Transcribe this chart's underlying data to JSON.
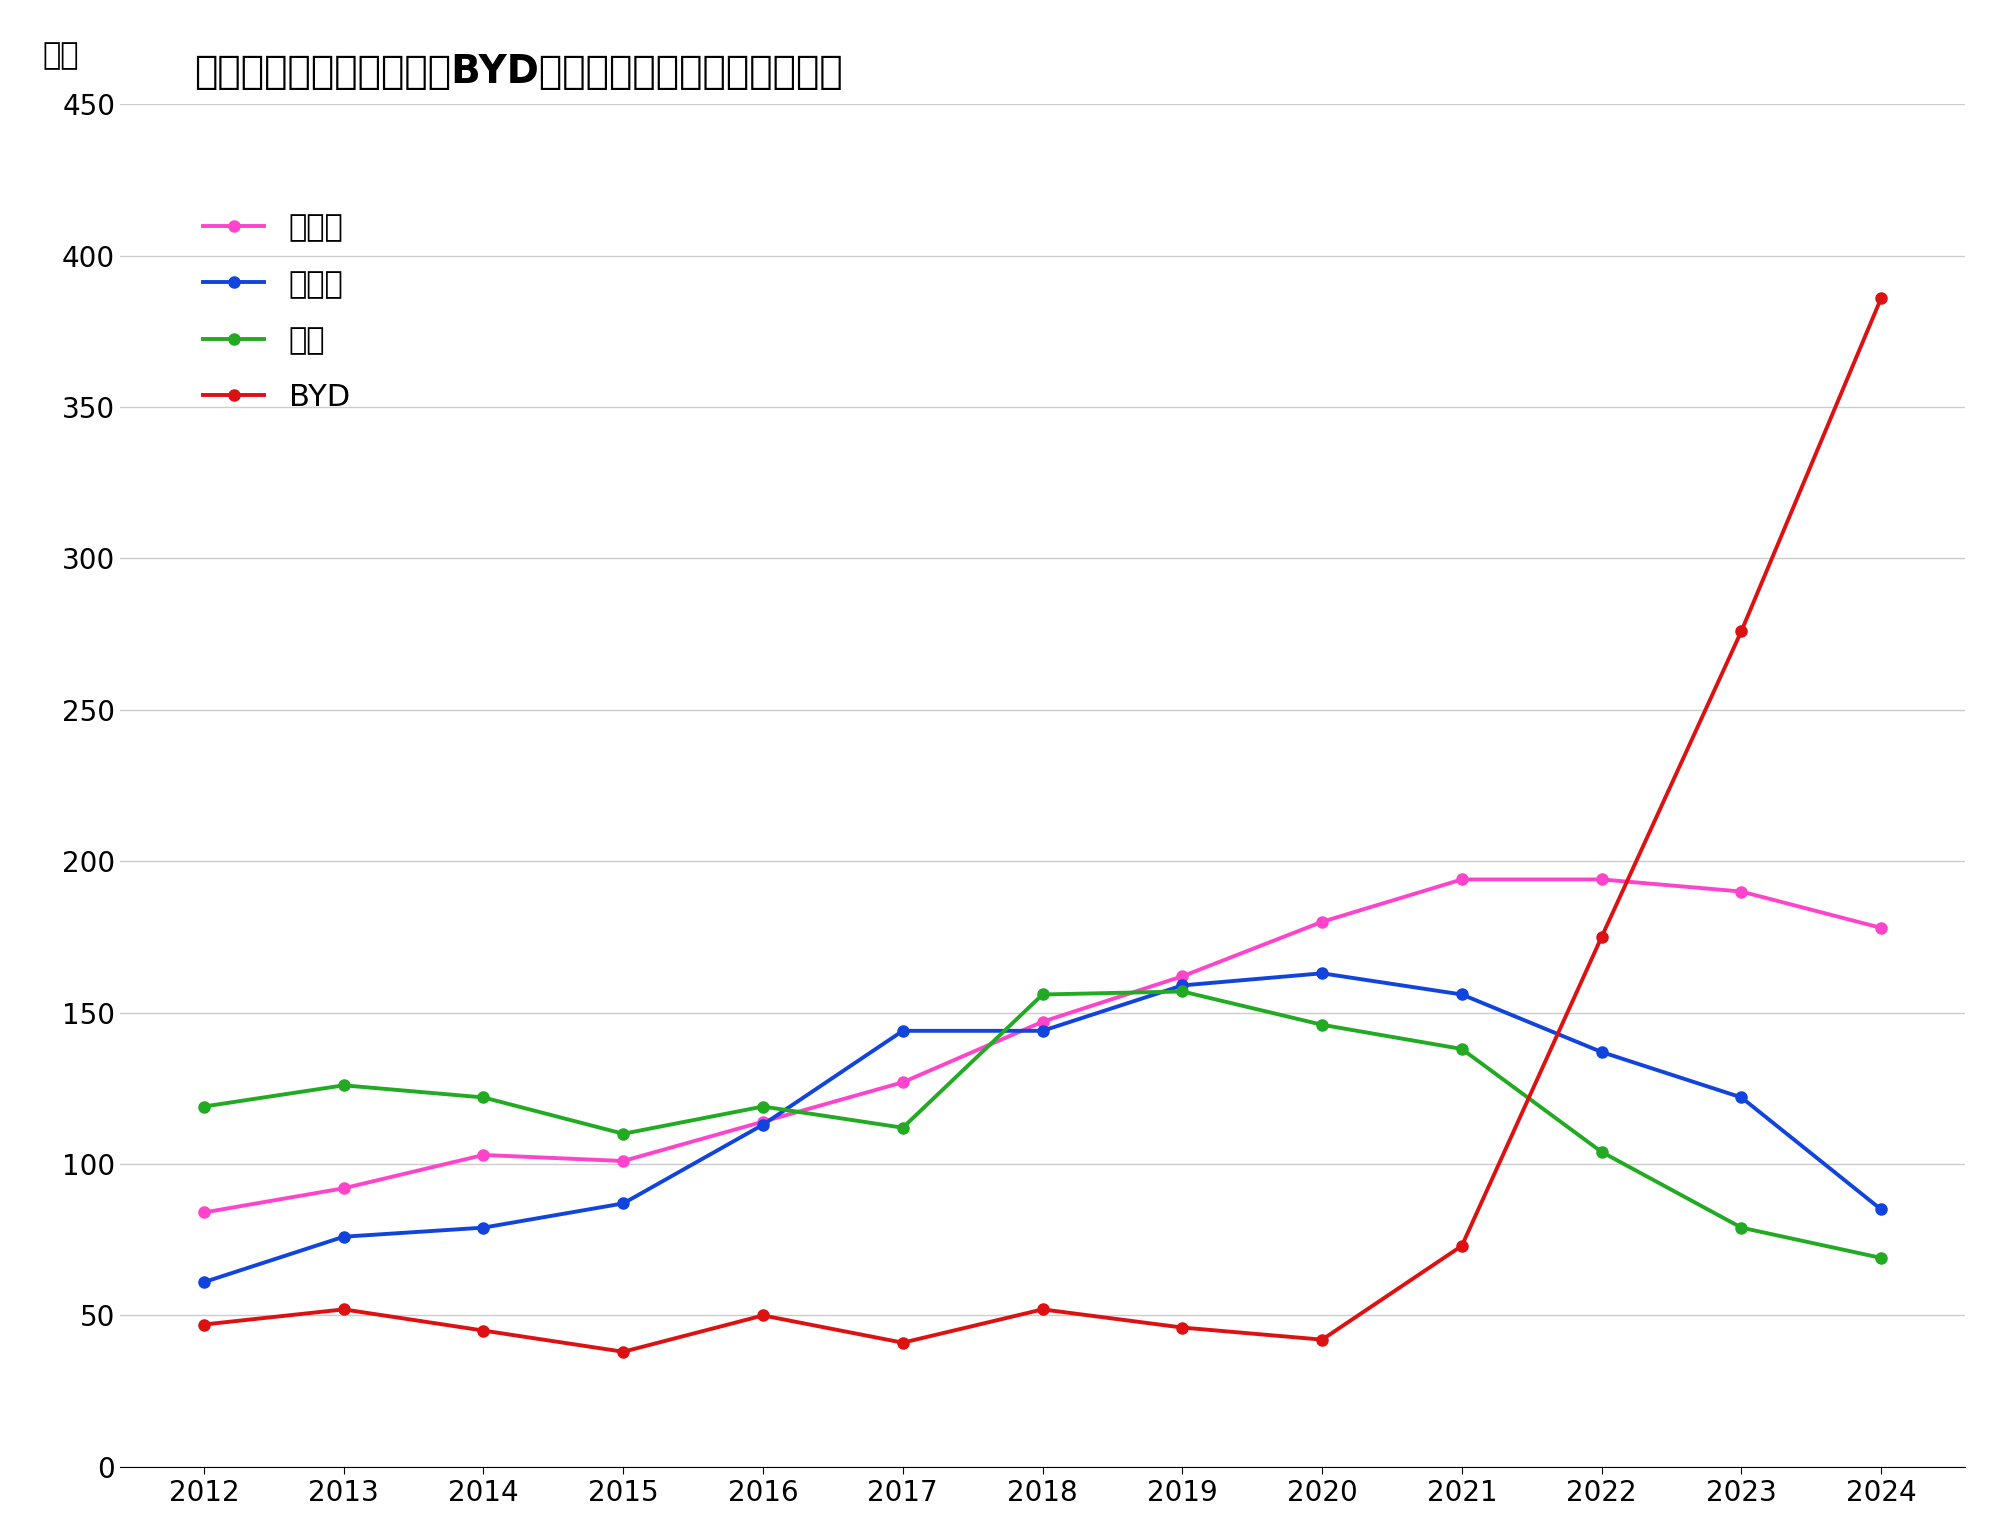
{
  "title": "トヨタ、ホンダ、日産、BYDの中国における販売台数推移",
  "ylabel": "万台",
  "years": [
    2012,
    2013,
    2014,
    2015,
    2016,
    2017,
    2018,
    2019,
    2020,
    2021,
    2022,
    2023,
    2024
  ],
  "toyota": [
    84,
    92,
    103,
    101,
    114,
    127,
    147,
    162,
    180,
    194,
    194,
    190,
    178
  ],
  "honda": [
    61,
    76,
    79,
    87,
    113,
    144,
    144,
    159,
    163,
    156,
    137,
    122,
    85
  ],
  "nissan": [
    119,
    126,
    122,
    110,
    119,
    112,
    156,
    157,
    146,
    138,
    104,
    79,
    69
  ],
  "byd": [
    47,
    52,
    45,
    38,
    50,
    41,
    52,
    46,
    42,
    73,
    175,
    276,
    386
  ],
  "toyota_color": "#ff44cc",
  "honda_color": "#1144dd",
  "nissan_color": "#22aa22",
  "byd_color": "#dd1111",
  "legend_toyota": "トヨタ",
  "legend_honda": "ホンダ",
  "legend_nissan": "日産",
  "legend_byd": "BYD",
  "ylim": [
    0,
    450
  ],
  "yticks": [
    0,
    50,
    100,
    150,
    200,
    250,
    300,
    350,
    400,
    450
  ],
  "background_color": "#ffffff",
  "grid_color": "#cccccc",
  "title_fontsize": 28,
  "axis_label_fontsize": 22,
  "tick_fontsize": 20,
  "legend_fontsize": 22,
  "line_width": 2.8,
  "marker_size": 8
}
